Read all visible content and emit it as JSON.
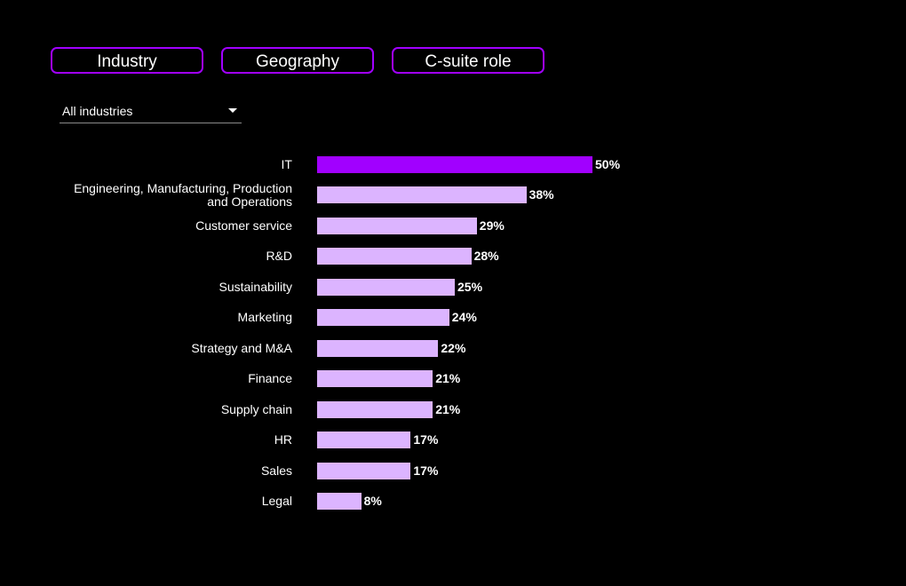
{
  "tabs": [
    {
      "label": "Industry"
    },
    {
      "label": "Geography"
    },
    {
      "label": "C-suite role"
    }
  ],
  "filter": {
    "selected": "All industries"
  },
  "colors": {
    "accent": "#a100ff",
    "highlight_bar": "#a100ff",
    "bar": "#dcb4ff",
    "background": "#000000",
    "text": "#ffffff"
  },
  "chart_data": {
    "type": "bar",
    "orientation": "horizontal",
    "categories": [
      "IT",
      "Engineering, Manufacturing, Production and Operations",
      "Customer service",
      "R&D",
      "Sustainability",
      "Marketing",
      "Strategy and M&A",
      "Finance",
      "Supply chain",
      "HR",
      "Sales",
      "Legal"
    ],
    "category_lines": [
      [
        "IT"
      ],
      [
        "Engineering, Manufacturing, Production",
        "and Operations"
      ],
      [
        "Customer service"
      ],
      [
        "R&D"
      ],
      [
        "Sustainability"
      ],
      [
        "Marketing"
      ],
      [
        "Strategy and M&A"
      ],
      [
        "Finance"
      ],
      [
        "Supply chain"
      ],
      [
        "HR"
      ],
      [
        "Sales"
      ],
      [
        "Legal"
      ]
    ],
    "values": [
      50,
      38,
      29,
      28,
      25,
      24,
      22,
      21,
      21,
      17,
      17,
      8
    ],
    "value_labels": [
      "50%",
      "38%",
      "29%",
      "28%",
      "25%",
      "24%",
      "22%",
      "21%",
      "21%",
      "17%",
      "17%",
      "8%"
    ],
    "highlight_index": 0,
    "unit": "%",
    "xlim": [
      0,
      100
    ],
    "grid": false,
    "legend": "none",
    "title": "",
    "xlabel": "",
    "ylabel": ""
  }
}
